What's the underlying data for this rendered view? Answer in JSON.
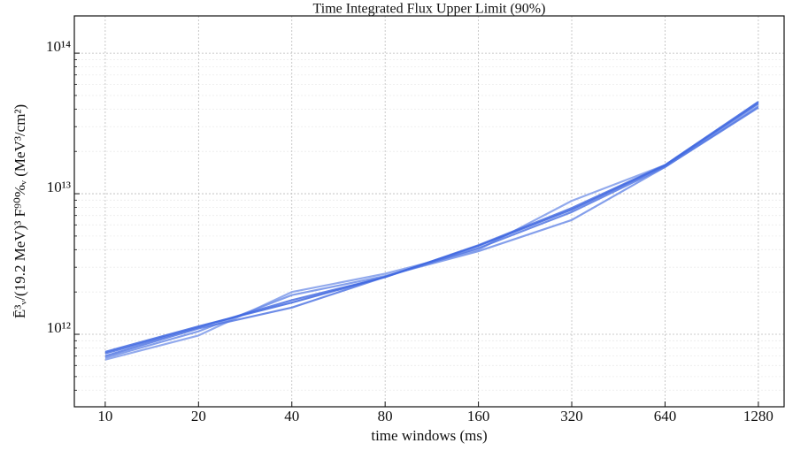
{
  "chart_data": {
    "type": "line",
    "title": "Time Integrated Flux Upper Limit (90%)",
    "xlabel": "time windows (ms)",
    "ylabel": "Ē³ᵥ/(19.2 MeV)³ F⁹⁰%ᵥ (MeV³/cm²)",
    "x": [
      10,
      20,
      40,
      80,
      160,
      320,
      640,
      1280
    ],
    "xscale": "log",
    "yscale": "log",
    "grid": true,
    "minor_grid": true,
    "xlim": [
      7.95,
      1550
    ],
    "ylim": [
      305000000000,
      184000000000000
    ],
    "xticks": [
      10,
      20,
      40,
      80,
      160,
      320,
      640,
      1280
    ],
    "yticks": [
      {
        "value": 1000000000000,
        "label": "10¹²"
      },
      {
        "value": 10000000000000,
        "label": "10¹³"
      },
      {
        "value": 100000000000000,
        "label": "10¹⁴"
      }
    ],
    "series": [
      {
        "color": "#7f9bea",
        "values": [
          660000000000,
          980000000000,
          2000000000000,
          2700000000000,
          4000000000000,
          8900000000000,
          16000000000000,
          45000000000000
        ]
      },
      {
        "color": "#6f8ee8",
        "values": [
          680000000000,
          1050000000000,
          1900000000000,
          2600000000000,
          3900000000000,
          6500000000000,
          15500000000000,
          42000000000000
        ]
      },
      {
        "color": "#5478e3",
        "values": [
          700000000000,
          1100000000000,
          1550000000000,
          2560000000000,
          4100000000000,
          7400000000000,
          15500000000000,
          41000000000000
        ]
      },
      {
        "color": "#4a70e2",
        "values": [
          730000000000,
          1120000000000,
          1750000000000,
          2550000000000,
          4300000000000,
          7900000000000,
          16000000000000,
          45000000000000
        ]
      },
      {
        "color": "#4169e1",
        "values": [
          750000000000,
          1140000000000,
          1680000000000,
          2560000000000,
          4260000000000,
          7700000000000,
          15900000000000,
          43800000000000
        ]
      }
    ]
  }
}
